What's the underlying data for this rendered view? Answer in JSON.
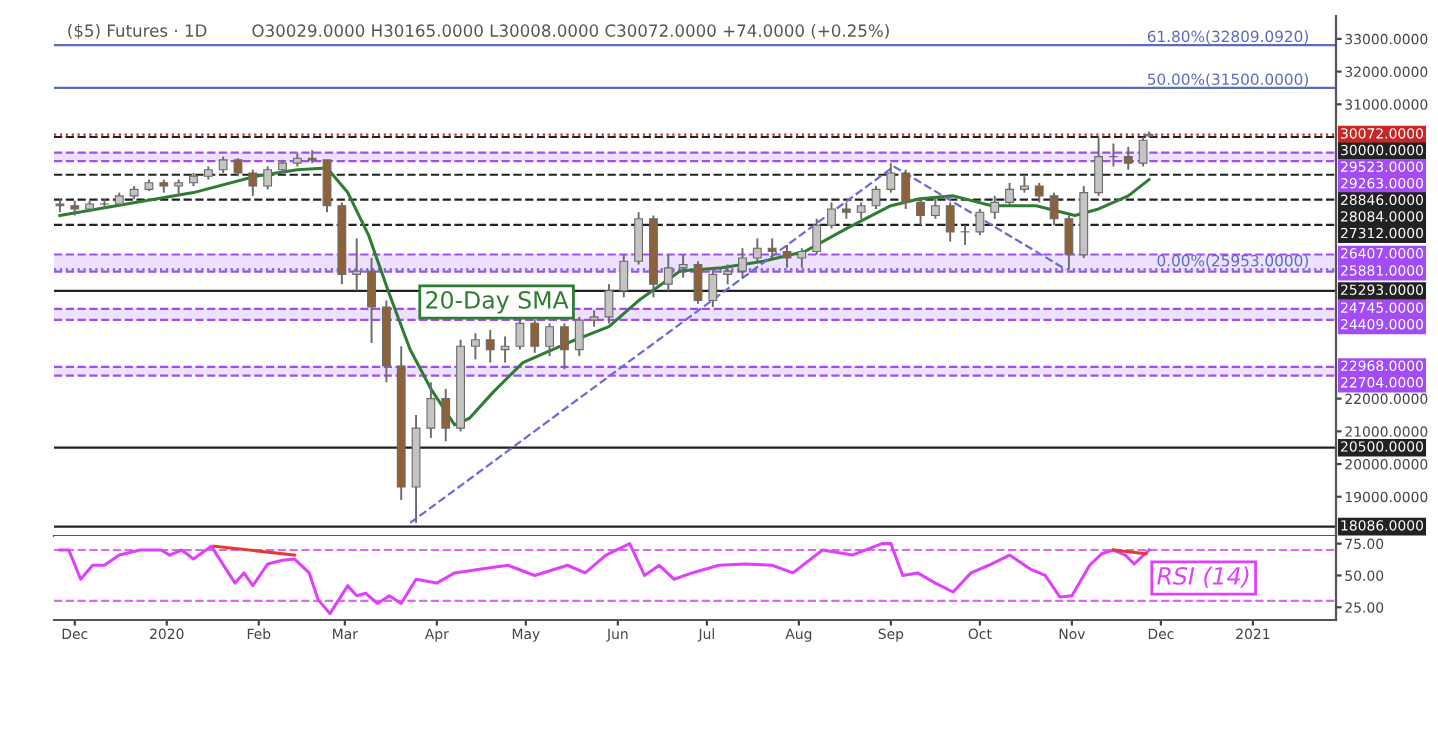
{
  "chart_data": [
    {
      "type": "candlestick",
      "title": "($5) Futures · 1D",
      "subtitle": "O30029.0000 H30165.0000 L30008.0000 C30072.0000 +74.0000 (+0.25%)",
      "colors": [
        "#8d6239",
        "#8d6239",
        "#c4c4c4",
        "#c4c4c4",
        "#c4c4c4",
        "#c4c4c4",
        "#c4c4c4",
        "#8d6239",
        "#c4c4c4",
        "#c4c4c4",
        "#c4c4c4",
        "#c4c4c4",
        "#8d6239",
        "#8d6239",
        "#c4c4c4",
        "#c4c4c4",
        "#c4c4c4",
        "#8d6239",
        "#8d6239",
        "#8d6239",
        "#c4c4c4",
        "#8d6239",
        "#8d6239",
        "#8d6239",
        "#c4c4c4",
        "#c4c4c4",
        "#8d6239",
        "#c4c4c4",
        "#c4c4c4",
        "#8d6239",
        "#c4c4c4",
        "#c4c4c4",
        "#8d6239",
        "#c4c4c4",
        "#8d6239",
        "#c4c4c4",
        "#c4c4c4",
        "#c4c4c4",
        "#c4c4c4",
        "#c4c4c4",
        "#8d6239",
        "#c4c4c4",
        "#c4c4c4",
        "#8d6239",
        "#c4c4c4",
        "#c4c4c4",
        "#c4c4c4",
        "#c4c4c4",
        "#8d6239",
        "#8d6239",
        "#c4c4c4",
        "#c4c4c4",
        "#c4c4c4",
        "#8d6239",
        "#c4c4c4",
        "#c4c4c4",
        "#c4c4c4",
        "#8d6239",
        "#8d6239",
        "#c4c4c4",
        "#8d6239",
        "#c4c4c4",
        "#c4c4c4",
        "#c4c4c4",
        "#c4c4c4",
        "#c4c4c4",
        "#8d6239",
        "#8d6239",
        "#8d6239",
        "#c4c4c4",
        "#c4c4c4",
        "#c4c4c4",
        "#8d6239",
        "#c4c4c4",
        "#c4c4c4"
      ],
      "x": [
        "2019-11-26",
        "2019-12-01",
        "2019-12-06",
        "2019-12-11",
        "2019-12-16",
        "2019-12-21",
        "2019-12-26",
        "2019-12-31",
        "2020-01-05",
        "2020-01-10",
        "2020-01-15",
        "2020-01-20",
        "2020-01-25",
        "2020-01-30",
        "2020-02-04",
        "2020-02-09",
        "2020-02-14",
        "2020-02-19",
        "2020-02-24",
        "2020-02-29",
        "2020-03-05",
        "2020-03-10",
        "2020-03-15",
        "2020-03-20",
        "2020-03-25",
        "2020-03-30",
        "2020-04-04",
        "2020-04-09",
        "2020-04-14",
        "2020-04-19",
        "2020-04-24",
        "2020-04-29",
        "2020-05-04",
        "2020-05-09",
        "2020-05-14",
        "2020-05-19",
        "2020-05-24",
        "2020-05-29",
        "2020-06-03",
        "2020-06-08",
        "2020-06-13",
        "2020-06-18",
        "2020-06-23",
        "2020-06-28",
        "2020-07-03",
        "2020-07-08",
        "2020-07-13",
        "2020-07-18",
        "2020-07-23",
        "2020-07-28",
        "2020-08-02",
        "2020-08-07",
        "2020-08-12",
        "2020-08-17",
        "2020-08-22",
        "2020-08-27",
        "2020-09-01",
        "2020-09-06",
        "2020-09-11",
        "2020-09-16",
        "2020-09-21",
        "2020-09-26",
        "2020-10-01",
        "2020-10-06",
        "2020-10-11",
        "2020-10-16",
        "2020-10-21",
        "2020-10-26",
        "2020-10-31",
        "2020-11-05",
        "2020-11-10",
        "2020-11-15",
        "2020-11-20",
        "2020-11-25",
        "2020-11-27"
      ],
      "ohlc": [
        [
          27950,
          28100,
          27700,
          27900
        ],
        [
          27900,
          28050,
          27600,
          27800
        ],
        [
          27800,
          28050,
          27700,
          27950
        ],
        [
          27950,
          28100,
          27800,
          27950
        ],
        [
          27950,
          28300,
          27900,
          28200
        ],
        [
          28200,
          28500,
          28100,
          28400
        ],
        [
          28400,
          28700,
          28350,
          28600
        ],
        [
          28600,
          28700,
          28300,
          28500
        ],
        [
          28500,
          28700,
          28200,
          28600
        ],
        [
          28600,
          28900,
          28500,
          28800
        ],
        [
          28800,
          29100,
          28700,
          29000
        ],
        [
          29000,
          29400,
          28900,
          29300
        ],
        [
          29300,
          29350,
          28800,
          28900
        ],
        [
          28900,
          29000,
          28200,
          28500
        ],
        [
          28500,
          29100,
          28400,
          29000
        ],
        [
          29000,
          29300,
          28900,
          29200
        ],
        [
          29200,
          29500,
          29100,
          29350
        ],
        [
          29350,
          29600,
          29200,
          29300
        ],
        [
          29300,
          29300,
          27700,
          27900
        ],
        [
          27900,
          28000,
          25500,
          25800
        ],
        [
          25800,
          26900,
          25300,
          25900
        ],
        [
          25900,
          26300,
          23700,
          24800
        ],
        [
          24800,
          25000,
          22500,
          23000
        ],
        [
          23000,
          23600,
          18900,
          19300
        ],
        [
          19300,
          21500,
          18200,
          21100
        ],
        [
          21100,
          22500,
          20800,
          22000
        ],
        [
          22000,
          22300,
          20700,
          21100
        ],
        [
          21100,
          23800,
          21000,
          23600
        ],
        [
          23600,
          24000,
          23200,
          23800
        ],
        [
          23800,
          24100,
          23100,
          23500
        ],
        [
          23500,
          23900,
          23100,
          23600
        ],
        [
          23600,
          24500,
          23500,
          24300
        ],
        [
          24300,
          24400,
          23400,
          23600
        ],
        [
          23600,
          24300,
          23300,
          24200
        ],
        [
          24200,
          24300,
          22900,
          23500
        ],
        [
          23500,
          24500,
          23300,
          24400
        ],
        [
          24400,
          24700,
          24200,
          24500
        ],
        [
          24500,
          25500,
          24300,
          25300
        ],
        [
          25300,
          26400,
          25100,
          26200
        ],
        [
          26200,
          27700,
          26100,
          27500
        ],
        [
          27500,
          27600,
          25100,
          25500
        ],
        [
          25500,
          26400,
          25300,
          26000
        ],
        [
          26000,
          26400,
          25700,
          26100
        ],
        [
          26100,
          26200,
          24900,
          25000
        ],
        [
          25000,
          26000,
          24800,
          25800
        ],
        [
          25800,
          26100,
          25500,
          25900
        ],
        [
          25900,
          26600,
          25700,
          26300
        ],
        [
          26300,
          26900,
          26200,
          26600
        ],
        [
          26600,
          26900,
          26300,
          26500
        ],
        [
          26500,
          26700,
          26000,
          26300
        ],
        [
          26300,
          26600,
          26000,
          26500
        ],
        [
          26500,
          27500,
          26400,
          27300
        ],
        [
          27300,
          28000,
          27200,
          27800
        ],
        [
          27800,
          28000,
          27500,
          27700
        ],
        [
          27700,
          28000,
          27500,
          27900
        ],
        [
          27900,
          28500,
          27800,
          28400
        ],
        [
          28400,
          29200,
          28300,
          28900
        ],
        [
          28900,
          29000,
          27800,
          28000
        ],
        [
          28000,
          28100,
          27300,
          27600
        ],
        [
          27600,
          28100,
          27500,
          27900
        ],
        [
          27900,
          28000,
          26800,
          27100
        ],
        [
          27100,
          27300,
          26700,
          27100
        ],
        [
          27100,
          27800,
          27000,
          27700
        ],
        [
          27700,
          28200,
          27500,
          28000
        ],
        [
          28000,
          28600,
          27900,
          28400
        ],
        [
          28400,
          28800,
          28300,
          28500
        ],
        [
          28500,
          28600,
          28000,
          28200
        ],
        [
          28200,
          28300,
          27300,
          27500
        ],
        [
          27500,
          27600,
          25950,
          26400
        ],
        [
          26400,
          28500,
          26300,
          28300
        ],
        [
          28300,
          30000,
          28200,
          29400
        ],
        [
          29400,
          29800,
          29100,
          29400
        ],
        [
          29400,
          29700,
          29000,
          29200
        ],
        [
          29200,
          30000,
          29100,
          29900
        ],
        [
          30029,
          30165,
          30008,
          30072
        ]
      ],
      "series": [
        {
          "name": "20-Day SMA",
          "type": "line",
          "color": "#2e7d32",
          "x": [
            "2019-11-26",
            "2019-12-15",
            "2020-01-10",
            "2020-01-31",
            "2020-02-14",
            "2020-02-24",
            "2020-03-02",
            "2020-03-09",
            "2020-03-16",
            "2020-03-23",
            "2020-03-30",
            "2020-04-07",
            "2020-04-12",
            "2020-04-20",
            "2020-04-30",
            "2020-05-15",
            "2020-05-29",
            "2020-06-08",
            "2020-06-22",
            "2020-07-06",
            "2020-07-20",
            "2020-08-03",
            "2020-08-17",
            "2020-09-01",
            "2020-09-10",
            "2020-09-22",
            "2020-10-05",
            "2020-10-20",
            "2020-11-02",
            "2020-11-10",
            "2020-11-20",
            "2020-11-27"
          ],
          "values": [
            27600,
            27900,
            28300,
            28800,
            29000,
            29050,
            28300,
            27000,
            25200,
            23500,
            22300,
            21200,
            21400,
            22200,
            23100,
            23700,
            24200,
            25000,
            25900,
            26000,
            26200,
            26500,
            27200,
            27900,
            28100,
            28200,
            27900,
            27900,
            27600,
            27800,
            28200,
            28700
          ]
        },
        {
          "type": "line",
          "color": "#6a6ad8",
          "line_style": "dashed",
          "x": [
            "2020-03-23",
            "2020-09-02"
          ],
          "values": [
            18200,
            29100
          ]
        },
        {
          "type": "line",
          "color": "#6a6ad8",
          "line_style": "dashed",
          "x": [
            "2020-09-02",
            "2020-10-30"
          ],
          "values": [
            29100,
            25950
          ]
        }
      ],
      "bands": [
        {
          "axis": "y",
          "from": 29263,
          "to": 29523,
          "color": "#e3ccff"
        },
        {
          "axis": "y",
          "from": 25881,
          "to": 26407,
          "color": "#e3ccff"
        },
        {
          "axis": "y",
          "from": 24409,
          "to": 24745,
          "color": "#e3ccff"
        },
        {
          "axis": "y",
          "from": 22704,
          "to": 22968,
          "color": "#e3ccff"
        }
      ],
      "ref_lines": [
        {
          "axis": "y",
          "value": 32809.092,
          "color": "#5c6bc0",
          "line_style": "solid"
        },
        {
          "axis": "y",
          "value": 31500,
          "color": "#5c6bc0",
          "line_style": "solid"
        },
        {
          "axis": "y",
          "value": 30072,
          "label": "30072.0000",
          "color": "#c62828",
          "line_style": "dotted"
        },
        {
          "axis": "y",
          "value": 30000,
          "label": "30000.0000",
          "color": "#222222",
          "line_style": "dashed"
        },
        {
          "axis": "y",
          "value": 29523,
          "label": "29523.0000",
          "color": "#a24cf5",
          "line_style": "dashed"
        },
        {
          "axis": "y",
          "value": 29263,
          "label": "29263.0000",
          "color": "#a24cf5",
          "line_style": "dashed"
        },
        {
          "axis": "y",
          "value": 28846,
          "label": "28846.0000",
          "color": "#222222",
          "line_style": "dashed"
        },
        {
          "axis": "y",
          "value": 28084,
          "label": "28084.0000",
          "color": "#222222",
          "line_style": "dashed"
        },
        {
          "axis": "y",
          "value": 27312,
          "label": "27312.0000",
          "color": "#222222",
          "line_style": "dashed"
        },
        {
          "axis": "y",
          "value": 26407,
          "label": "26407.0000",
          "color": "#a24cf5",
          "line_style": "dashed"
        },
        {
          "axis": "y",
          "value": 25953,
          "color": "#5c6bc0",
          "line_style": "dotted"
        },
        {
          "axis": "y",
          "value": 25881,
          "label": "25881.0000",
          "color": "#a24cf5",
          "line_style": "dashed"
        },
        {
          "axis": "y",
          "value": 25293,
          "label": "25293.0000",
          "color": "#222222",
          "line_style": "solid"
        },
        {
          "axis": "y",
          "value": 24745,
          "label": "24745.0000",
          "color": "#a24cf5",
          "line_style": "dashed"
        },
        {
          "axis": "y",
          "value": 24409,
          "label": "24409.0000",
          "color": "#a24cf5",
          "line_style": "dashed"
        },
        {
          "axis": "y",
          "value": 22968,
          "label": "22968.0000",
          "color": "#a24cf5",
          "line_style": "dashed"
        },
        {
          "axis": "y",
          "value": 22704,
          "label": "22704.0000",
          "color": "#a24cf5",
          "line_style": "dashed"
        },
        {
          "axis": "y",
          "value": 20500,
          "label": "20500.0000",
          "color": "#222222",
          "line_style": "solid"
        },
        {
          "axis": "y",
          "value": 18086,
          "label": "18086.0000",
          "color": "#222222",
          "line_style": "solid"
        }
      ],
      "annotations": [
        {
          "text": "61.80%(32809.0920)",
          "x": "2021-01-20",
          "y": 32809.092
        },
        {
          "text": "50.00%(31500.0000)",
          "x": "2021-01-20",
          "y": 31500
        },
        {
          "text": "0.00%(25953.0000)",
          "x": "2021-01-20",
          "y": 25953
        }
      ],
      "xlim": [
        "2019-11-24",
        "2021-01-29"
      ],
      "ylim": [
        17800,
        33700
      ],
      "yticks": [
        {
          "value": 19000,
          "label": "19000.0000"
        },
        {
          "value": 20000,
          "label": "20000.0000"
        },
        {
          "value": 21000,
          "label": "21000.0000"
        },
        {
          "value": 22000,
          "label": "22000.0000"
        },
        {
          "value": 31000,
          "label": "31000.0000"
        },
        {
          "value": 32000,
          "label": "32000.0000"
        },
        {
          "value": 33000,
          "label": "33000.0000"
        }
      ],
      "tick_labels": "y"
    },
    {
      "type": "line",
      "series": [
        {
          "name": "RSI (14)",
          "color": "#e040fb",
          "x": [
            "2019-11-26",
            "2019-11-29",
            "2019-12-03",
            "2019-12-07",
            "2019-12-11",
            "2019-12-16",
            "2019-12-23",
            "2019-12-30",
            "2020-01-02",
            "2020-01-06",
            "2020-01-10",
            "2020-01-16",
            "2020-01-24",
            "2020-01-27",
            "2020-01-30",
            "2020-02-04",
            "2020-02-09",
            "2020-02-13",
            "2020-02-18",
            "2020-02-21",
            "2020-02-25",
            "2020-03-02",
            "2020-03-05",
            "2020-03-08",
            "2020-03-12",
            "2020-03-16",
            "2020-03-20",
            "2020-03-25",
            "2020-04-01",
            "2020-04-07",
            "2020-04-16",
            "2020-04-25",
            "2020-05-04",
            "2020-05-15",
            "2020-05-21",
            "2020-05-28",
            "2020-06-05",
            "2020-06-10",
            "2020-06-15",
            "2020-06-20",
            "2020-06-26",
            "2020-07-05",
            "2020-07-14",
            "2020-07-23",
            "2020-07-30",
            "2020-08-09",
            "2020-08-19",
            "2020-08-29",
            "2020-09-01",
            "2020-09-05",
            "2020-09-10",
            "2020-09-16",
            "2020-09-22",
            "2020-09-28",
            "2020-10-04",
            "2020-10-11",
            "2020-10-18",
            "2020-10-23",
            "2020-10-28",
            "2020-11-01",
            "2020-11-07",
            "2020-11-11",
            "2020-11-15",
            "2020-11-19",
            "2020-11-22",
            "2020-11-27"
          ],
          "values": [
            70,
            70,
            47,
            58,
            58,
            66,
            70,
            70,
            66,
            70,
            63,
            73,
            44,
            52,
            42,
            59,
            62,
            63,
            52,
            31,
            20,
            42,
            34,
            36,
            28,
            34,
            28,
            47,
            44,
            52,
            55,
            58,
            50,
            58,
            52,
            66,
            75,
            50,
            58,
            47,
            52,
            58,
            59,
            58,
            52,
            70,
            66,
            75,
            75,
            50,
            52,
            44,
            37,
            52,
            58,
            66,
            55,
            50,
            33,
            34,
            58,
            67,
            70,
            66,
            59,
            70
          ]
        },
        {
          "type": "line",
          "color": "#e53935",
          "x": [
            "2020-01-17",
            "2020-02-13"
          ],
          "values": [
            73,
            66
          ]
        },
        {
          "type": "line",
          "color": "#e53935",
          "x": [
            "2020-11-15",
            "2020-11-26"
          ],
          "values": [
            70,
            67
          ]
        }
      ],
      "ref_lines": [
        {
          "axis": "y",
          "value": 70,
          "color": "#e066f0",
          "line_style": "dashed"
        },
        {
          "axis": "y",
          "value": 30,
          "color": "#e066f0",
          "line_style": "dashed"
        }
      ],
      "xlim": [
        "2019-11-24",
        "2021-01-29"
      ],
      "ylim": [
        15,
        81
      ],
      "xticks": [
        {
          "value": "2019-12-01",
          "label": "Dec"
        },
        {
          "value": "2020-01-01",
          "label": "2020"
        },
        {
          "value": "2020-02-01",
          "label": "Feb"
        },
        {
          "value": "2020-03-01",
          "label": "Mar"
        },
        {
          "value": "2020-04-01",
          "label": "Apr"
        },
        {
          "value": "2020-05-01",
          "label": "May"
        },
        {
          "value": "2020-06-01",
          "label": "Jun"
        },
        {
          "value": "2020-07-01",
          "label": "Jul"
        },
        {
          "value": "2020-08-01",
          "label": "Aug"
        },
        {
          "value": "2020-09-01",
          "label": "Sep"
        },
        {
          "value": "2020-10-01",
          "label": "Oct"
        },
        {
          "value": "2020-11-01",
          "label": "Nov"
        },
        {
          "value": "2020-12-01",
          "label": "Dec"
        },
        {
          "value": "2021-01-01",
          "label": "2021"
        }
      ],
      "yticks": [
        {
          "value": 25,
          "label": "25.00"
        },
        {
          "value": 50,
          "label": "50.00"
        },
        {
          "value": 75,
          "label": "75.00"
        }
      ]
    }
  ]
}
